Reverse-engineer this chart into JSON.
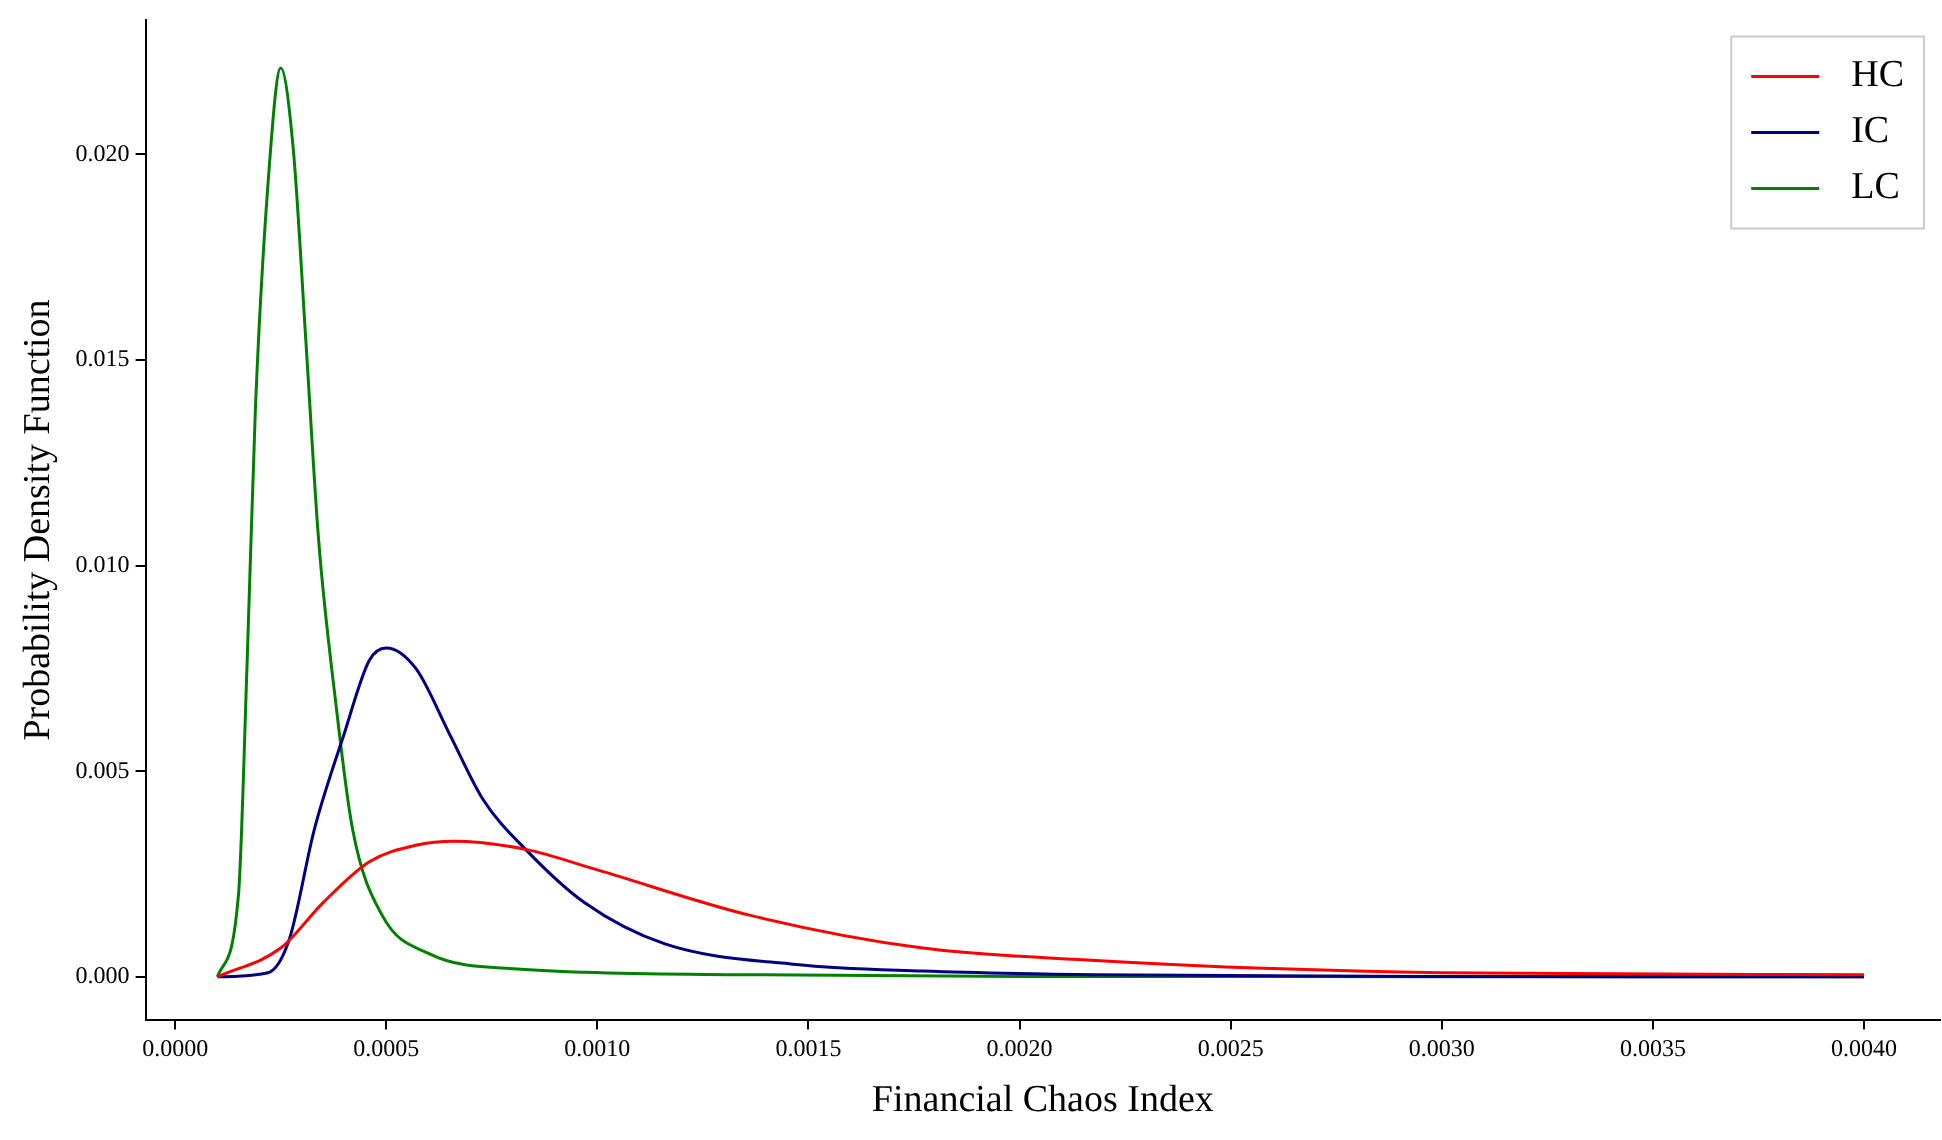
{
  "chart_data": {
    "type": "line",
    "xlabel": "Financial Chaos Index",
    "ylabel": "Probability Density Function",
    "xlim": [
      -7e-05,
      0.00418
    ],
    "ylim": [
      -0.00104,
      0.02326
    ],
    "xticks": [
      {
        "value": 0,
        "label": "0.0000"
      },
      {
        "value": 0.0005,
        "label": "0.0005"
      },
      {
        "value": 0.001,
        "label": "0.0010"
      },
      {
        "value": 0.0015,
        "label": "0.0015"
      },
      {
        "value": 0.002,
        "label": "0.0020"
      },
      {
        "value": 0.0025,
        "label": "0.0025"
      },
      {
        "value": 0.003,
        "label": "0.0030"
      },
      {
        "value": 0.0035,
        "label": "0.0035"
      },
      {
        "value": 0.004,
        "label": "0.0040"
      }
    ],
    "yticks": [
      {
        "value": 0,
        "label": "0.000"
      },
      {
        "value": 0.005,
        "label": "0.005"
      },
      {
        "value": 0.01,
        "label": "0.010"
      },
      {
        "value": 0.015,
        "label": "0.015"
      },
      {
        "value": 0.02,
        "label": "0.020"
      }
    ],
    "grid": false,
    "legend": "top right",
    "marker": "none",
    "line_style": "solid",
    "series": [
      {
        "name": "HC",
        "color": "#ff0000",
        "x": [
          0.0001,
          0.00025,
          0.00035,
          0.00046,
          0.00057,
          0.00066,
          0.00083,
          0.001,
          0.00136,
          0.00177,
          0.00218,
          0.0026,
          0.003,
          0.004
        ],
        "values": [
          0,
          0.0007,
          0.0018,
          0.0028,
          0.0032,
          0.0033,
          0.0031,
          0.0026,
          0.0015,
          0.0007,
          0.0004,
          0.0002,
          0.0001,
          5e-05
        ]
      },
      {
        "name": "IC",
        "color": "#000080",
        "x": [
          0.0001,
          0.00022,
          0.00027,
          0.00033,
          0.0004,
          0.00046,
          0.0005,
          0.00057,
          0.00065,
          0.00073,
          0.00083,
          0.00097,
          0.00116,
          0.00147,
          0.00177,
          0.00218,
          0.003,
          0.004
        ],
        "values": [
          0,
          0.0001,
          0.0009,
          0.0036,
          0.0059,
          0.0077,
          0.008,
          0.0075,
          0.0059,
          0.0043,
          0.0031,
          0.0018,
          0.0008,
          0.0003,
          0.00014,
          5e-05,
          1e-05,
          0
        ]
      },
      {
        "name": "LC",
        "color": "#008000",
        "x": [
          0.0001,
          0.00015,
          0.00017,
          0.00019,
          0.00022,
          0.00025,
          0.00028,
          0.00031,
          0.00034,
          0.00038,
          0.00042,
          0.00049,
          0.0006,
          0.00081,
          0.00137,
          0.002,
          0.004
        ],
        "values": [
          0,
          0.002,
          0.0075,
          0.0138,
          0.0193,
          0.0221,
          0.0201,
          0.0154,
          0.0106,
          0.0067,
          0.0036,
          0.0015,
          0.00057,
          0.00019,
          5e-05,
          1e-05,
          0
        ]
      }
    ]
  }
}
